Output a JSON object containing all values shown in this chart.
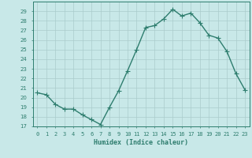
{
  "x": [
    0,
    1,
    2,
    3,
    4,
    5,
    6,
    7,
    8,
    9,
    10,
    11,
    12,
    13,
    14,
    15,
    16,
    17,
    18,
    19,
    20,
    21,
    22,
    23
  ],
  "y": [
    20.5,
    20.3,
    19.3,
    18.8,
    18.8,
    18.2,
    17.7,
    17.2,
    19.0,
    20.7,
    22.8,
    25.0,
    27.3,
    27.5,
    28.2,
    29.2,
    28.5,
    28.8,
    27.8,
    26.5,
    26.2,
    24.8,
    22.5,
    20.8
  ],
  "line_color": "#2e7d6e",
  "marker": "D",
  "marker_size": 2.0,
  "bg_color": "#c8e8e8",
  "grid_color": "#aacccc",
  "xlabel": "Humidex (Indice chaleur)",
  "ylim": [
    17,
    30
  ],
  "yticks": [
    17,
    18,
    19,
    20,
    21,
    22,
    23,
    24,
    25,
    26,
    27,
    28,
    29
  ],
  "xtick_labels": [
    "0",
    "1",
    "2",
    "3",
    "4",
    "5",
    "6",
    "7",
    "8",
    "9",
    "10",
    "11",
    "12",
    "13",
    "14",
    "15",
    "16",
    "17",
    "18",
    "19",
    "20",
    "21",
    "22",
    "23"
  ],
  "axis_color": "#2e7d6e",
  "tick_color": "#2e7d6e",
  "label_color": "#2e7d6e",
  "grid_linewidth": 0.5,
  "line_linewidth": 1.0
}
